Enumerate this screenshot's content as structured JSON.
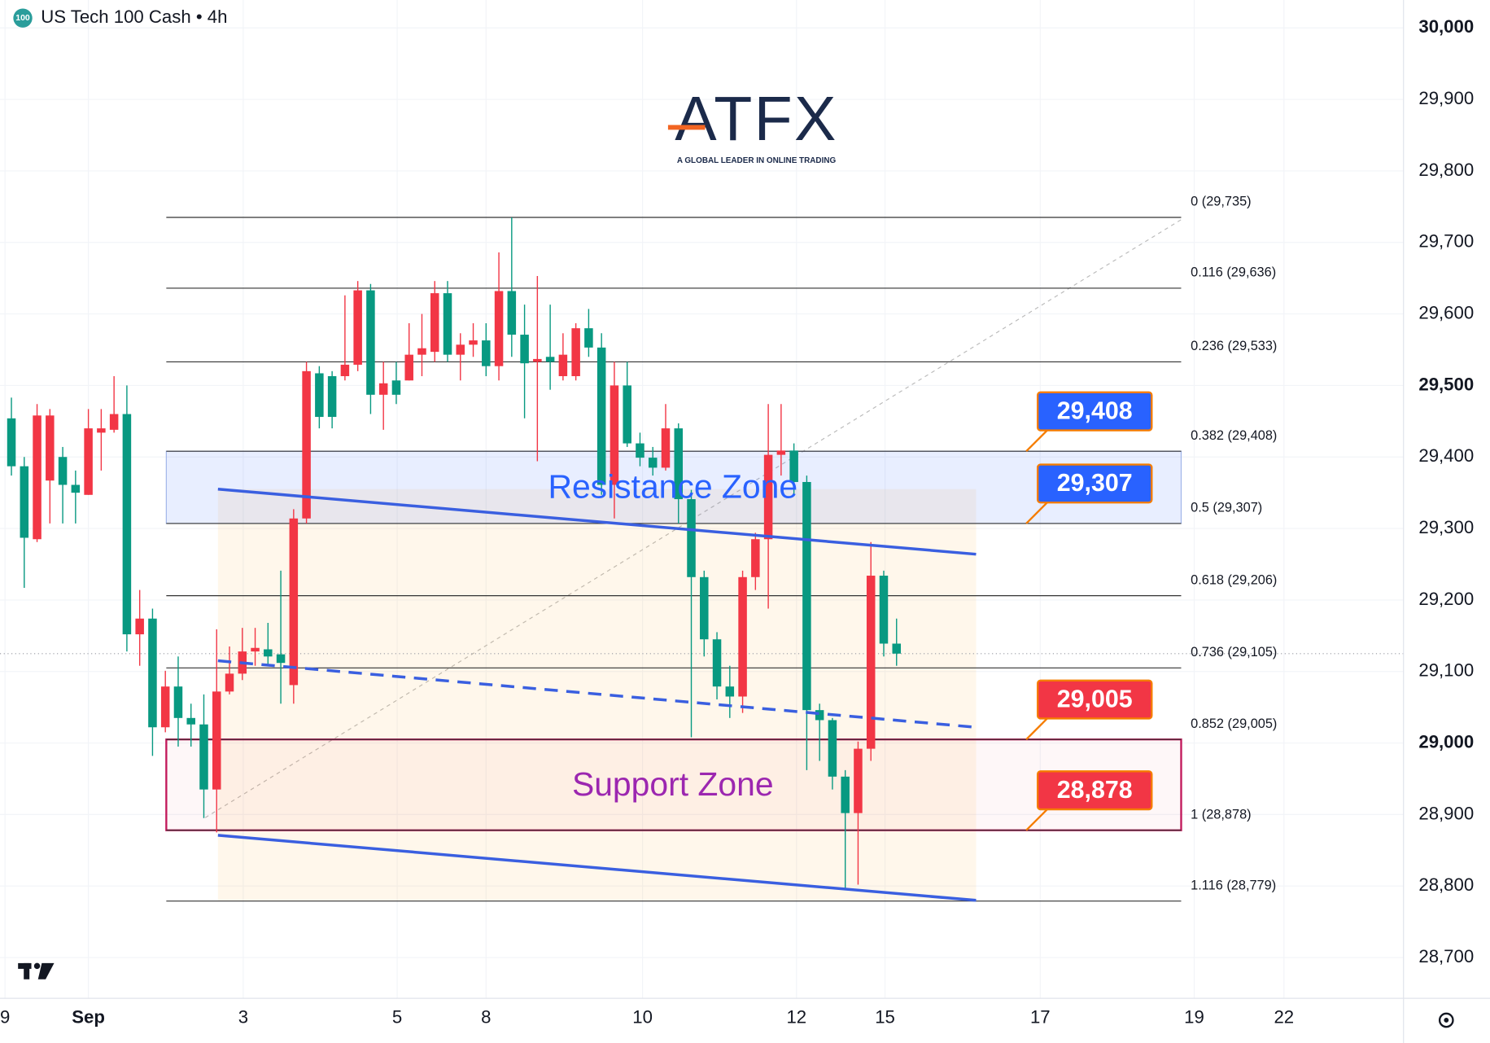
{
  "chart_data": {
    "type": "candlestick",
    "title": "US Tech 100 Cash • 4h",
    "badge": "100",
    "logo": {
      "text": "ATFX",
      "tagline": "A GLOBAL LEADER IN ONLINE TRADING"
    },
    "up_color": "#f23645",
    "down_color": "#089981",
    "open": [
      29454,
      29387,
      29285,
      29367,
      29400,
      29361,
      29347,
      29434,
      29438,
      29460,
      29152,
      29174,
      29022,
      29079,
      29035,
      29026,
      28935,
      29072,
      29097,
      29128,
      29131,
      29124,
      29081,
      29314,
      29517,
      29513,
      29513,
      29529,
      29633,
      29487,
      29507,
      29507,
      29543,
      29547,
      29629,
      29543,
      29557,
      29563,
      29527,
      29632,
      29571,
      29533,
      29540,
      29513,
      29513,
      29580,
      29553,
      29361,
      29500,
      29419,
      29399,
      29385,
      29440,
      29341,
      29232,
      29145,
      29079,
      29065,
      29232,
      29285,
      29403,
      29409,
      29365,
      29046,
      29032,
      28953,
      28902,
      28992,
      29234,
      29139
    ],
    "high": [
      29483,
      29400,
      29474,
      29467,
      29414,
      29381,
      29467,
      29467,
      29513,
      29500,
      29214,
      29188,
      29101,
      29121,
      29055,
      29068,
      29159,
      29135,
      29161,
      29161,
      29168,
      29241,
      29327,
      29533,
      29527,
      29520,
      29626,
      29646,
      29642,
      29533,
      29533,
      29587,
      29600,
      29646,
      29646,
      29573,
      29587,
      29587,
      29686,
      29735,
      29613,
      29653,
      29613,
      29573,
      29587,
      29607,
      29573,
      29533,
      29533,
      29434,
      29414,
      29474,
      29447,
      29354,
      29241,
      29155,
      29108,
      29241,
      29294,
      29474,
      29474,
      29419,
      29374,
      29055,
      29035,
      28962,
      29002,
      29281,
      29241,
      29174
    ],
    "low": [
      29374,
      29217,
      29281,
      29307,
      29307,
      29307,
      29347,
      29381,
      29434,
      29128,
      29108,
      28982,
      29015,
      28995,
      28995,
      28895,
      28875,
      29068,
      29088,
      29108,
      29108,
      29055,
      29055,
      29307,
      29440,
      29440,
      29507,
      29520,
      29460,
      29438,
      29474,
      29507,
      29513,
      29533,
      29533,
      29507,
      29540,
      29513,
      29507,
      29540,
      29454,
      29394,
      29494,
      29507,
      29507,
      29540,
      29347,
      29314,
      29414,
      29387,
      29374,
      29381,
      29307,
      29008,
      29121,
      29061,
      29035,
      29042,
      29214,
      29188,
      29374,
      29347,
      28962,
      28975,
      28935,
      28796,
      28802,
      28975,
      29121,
      29108
    ],
    "close": [
      29387,
      29287,
      29458,
      29458,
      29361,
      29350,
      29440,
      29440,
      29460,
      29152,
      29174,
      29022,
      29079,
      29035,
      29026,
      28935,
      29072,
      29097,
      29128,
      29133,
      29121,
      29112,
      29314,
      29520,
      29456,
      29456,
      29529,
      29633,
      29487,
      29503,
      29487,
      29543,
      29552,
      29629,
      29543,
      29557,
      29563,
      29527,
      29632,
      29571,
      29531,
      29537,
      29533,
      29543,
      29580,
      29553,
      29361,
      29500,
      29419,
      29399,
      29385,
      29440,
      29341,
      29232,
      29145,
      29079,
      29065,
      29232,
      29285,
      29403,
      29409,
      29365,
      29046,
      29032,
      28953,
      28902,
      28992,
      29234,
      29139,
      29125
    ],
    "xlim": [
      -0.89,
      108.52
    ],
    "xticks": [
      {
        "value": -0.5,
        "label": "9"
      },
      {
        "value": 6,
        "label": "Sep"
      },
      {
        "value": 18.07,
        "label": "3"
      },
      {
        "value": 30.07,
        "label": "5"
      },
      {
        "value": 37,
        "label": "8"
      },
      {
        "value": 49.2,
        "label": "10"
      },
      {
        "value": 61.2,
        "label": "12"
      },
      {
        "value": 68.1,
        "label": "15"
      },
      {
        "value": 80.2,
        "label": "17"
      },
      {
        "value": 92.2,
        "label": "19"
      },
      {
        "value": 99.2,
        "label": "22"
      }
    ],
    "ylim": [
      28643,
      30039
    ],
    "yticks": [
      {
        "value": 30000,
        "label": "30,000"
      },
      {
        "value": 29900,
        "label": "29,900"
      },
      {
        "value": 29800,
        "label": "29,800"
      },
      {
        "value": 29700,
        "label": "29,700"
      },
      {
        "value": 29600,
        "label": "29,600"
      },
      {
        "value": 29500,
        "label": "29,500"
      },
      {
        "value": 29400,
        "label": "29,400"
      },
      {
        "value": 29300,
        "label": "29,300"
      },
      {
        "value": 29200,
        "label": "29,200"
      },
      {
        "value": 29100,
        "label": "29,100"
      },
      {
        "value": 29000,
        "label": "29,000"
      },
      {
        "value": 28900,
        "label": "28,900"
      },
      {
        "value": 28800,
        "label": "28,800"
      },
      {
        "value": 28700,
        "label": "28,700"
      }
    ],
    "grid": true,
    "fib_levels": [
      {
        "value": 29735,
        "label": "0 (29,735)"
      },
      {
        "value": 29636,
        "label": "0.116 (29,636)"
      },
      {
        "value": 29533,
        "label": "0.236 (29,533)"
      },
      {
        "value": 29408,
        "label": "0.382 (29,408)"
      },
      {
        "value": 29307,
        "label": "0.5 (29,307)"
      },
      {
        "value": 29206,
        "label": "0.618 (29,206)"
      },
      {
        "value": 29105,
        "label": "0.736 (29,105)"
      },
      {
        "value": 29005,
        "label": "0.852 (29,005)"
      },
      {
        "value": 28878,
        "label": "1 (28,878)"
      },
      {
        "value": 28779,
        "label": "1.116 (28,779)"
      }
    ],
    "zones": [
      {
        "label": "Resistance Zone",
        "range": [
          29307,
          29408
        ],
        "color": "#2962ff"
      },
      {
        "label": "Support Zone",
        "range": [
          28878,
          29005
        ],
        "color": "#9c27b0"
      }
    ],
    "price_tags": [
      {
        "value": 29408,
        "label": "29,408",
        "color": "#2962ff"
      },
      {
        "value": 29307,
        "label": "29,307",
        "color": "#2962ff"
      },
      {
        "value": 29005,
        "label": "29,005",
        "color": "#f23645"
      },
      {
        "value": 28878,
        "label": "28,878",
        "color": "#f23645"
      }
    ],
    "channel_box": [
      [
        16.1,
        29355
      ],
      [
        75.2,
        28780
      ]
    ],
    "trendlines": [
      {
        "points": [
          [
            16.1,
            29355
          ],
          [
            75.2,
            29264
          ]
        ],
        "style": "solid"
      },
      {
        "points": [
          [
            16.1,
            29115
          ],
          [
            75.2,
            29022
          ]
        ],
        "style": "dashed"
      },
      {
        "points": [
          [
            16.1,
            28871
          ],
          [
            75.2,
            28780
          ]
        ],
        "style": "solid"
      }
    ]
  }
}
